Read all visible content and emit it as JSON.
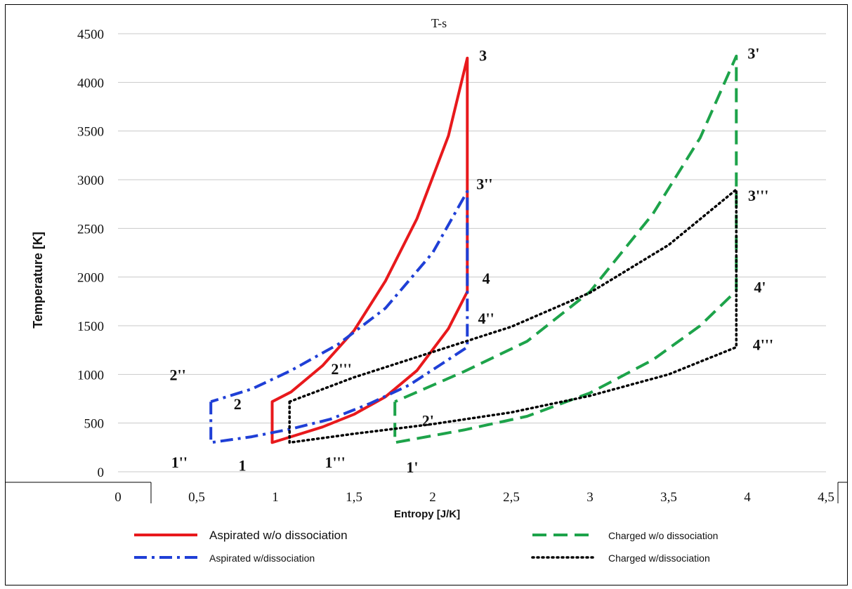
{
  "chart_data": {
    "type": "line",
    "title": "T-s",
    "xlabel": "Entropy [J/K]",
    "ylabel": "Temperature  [K]",
    "xlim": [
      0,
      4.5
    ],
    "ylim": [
      0,
      4500
    ],
    "x_ticks": [
      "0",
      "0,5",
      "1",
      "1,5",
      "2",
      "2,5",
      "3",
      "3,5",
      "4",
      "4,5"
    ],
    "y_ticks": [
      "0",
      "500",
      "1000",
      "1500",
      "2000",
      "2500",
      "3000",
      "3500",
      "4000",
      "4500"
    ],
    "grid": "horizontal",
    "legend_position": "bottom",
    "series": [
      {
        "name": "Aspirated w/o dissociation",
        "color": "#e8191c",
        "style": "solid",
        "x": [
          0.98,
          0.98,
          1.1,
          1.3,
          1.5,
          1.7,
          1.9,
          2.1,
          2.22,
          2.22,
          2.1,
          1.9,
          1.7,
          1.5,
          1.3,
          1.1,
          0.98,
          0.98
        ],
        "y": [
          720,
          300,
          360,
          460,
          590,
          770,
          1040,
          1470,
          1850,
          4250,
          3450,
          2600,
          1960,
          1450,
          1090,
          820,
          720,
          300
        ]
      },
      {
        "name": "Aspirated w/dissociation",
        "color": "#1f3fd6",
        "style": "dashdot",
        "x": [
          0.59,
          0.59,
          0.85,
          1.1,
          1.35,
          1.6,
          1.85,
          2.05,
          2.22,
          2.22,
          2.0,
          1.7,
          1.4,
          1.1,
          0.85,
          0.59
        ],
        "y": [
          720,
          300,
          360,
          440,
          540,
          700,
          890,
          1100,
          1280,
          2880,
          2250,
          1680,
          1310,
          1040,
          850,
          720
        ]
      },
      {
        "name": "Charged w/o dissociation",
        "color": "#1da34a",
        "style": "dashed",
        "x": [
          1.76,
          1.76,
          2.2,
          2.6,
          3.0,
          3.4,
          3.7,
          3.93,
          3.93,
          3.7,
          3.4,
          3.0,
          2.6,
          2.2,
          1.76
        ],
        "y": [
          720,
          300,
          430,
          570,
          810,
          1150,
          1500,
          1860,
          4270,
          3430,
          2650,
          1850,
          1340,
          1030,
          720
        ]
      },
      {
        "name": "Charged w/dissociation",
        "color": "#000000",
        "style": "dotted",
        "x": [
          1.09,
          1.09,
          1.5,
          2.0,
          2.5,
          3.0,
          3.5,
          3.93,
          3.93,
          3.5,
          3.0,
          2.5,
          2.0,
          1.5,
          1.09
        ],
        "y": [
          720,
          300,
          390,
          490,
          610,
          780,
          1000,
          1280,
          2900,
          2330,
          1840,
          1490,
          1230,
          970,
          720
        ]
      }
    ],
    "annotations": [
      {
        "text": "3",
        "x": 2.32,
        "y": 4280
      },
      {
        "text": "3'",
        "x": 4.04,
        "y": 4300
      },
      {
        "text": "3''",
        "x": 2.33,
        "y": 2960
      },
      {
        "text": "3'''",
        "x": 4.07,
        "y": 2840
      },
      {
        "text": "4",
        "x": 2.34,
        "y": 1990
      },
      {
        "text": "4'",
        "x": 4.08,
        "y": 1900
      },
      {
        "text": "4''",
        "x": 2.34,
        "y": 1580
      },
      {
        "text": "4'''",
        "x": 4.1,
        "y": 1310
      },
      {
        "text": "2''",
        "x": 0.38,
        "y": 1000
      },
      {
        "text": "2'''",
        "x": 1.42,
        "y": 1060
      },
      {
        "text": "2",
        "x": 0.76,
        "y": 700
      },
      {
        "text": "2'",
        "x": 1.97,
        "y": 530
      },
      {
        "text": "1''",
        "x": 0.39,
        "y": 100
      },
      {
        "text": "1",
        "x": 0.79,
        "y": 70
      },
      {
        "text": "1'''",
        "x": 1.38,
        "y": 100
      },
      {
        "text": "1'",
        "x": 1.87,
        "y": 50
      }
    ]
  }
}
